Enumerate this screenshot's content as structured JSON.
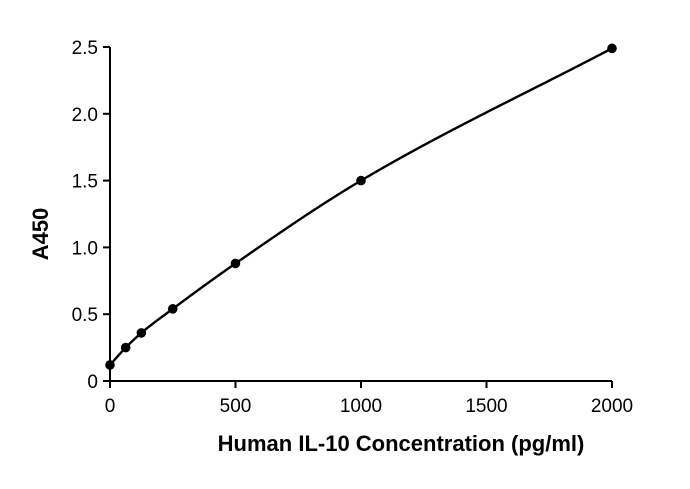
{
  "chart_data": {
    "type": "scatter",
    "title": "",
    "xlabel": "Human IL-10 Concentration (pg/ml)",
    "ylabel": "A450",
    "xlim": [
      0,
      2000
    ],
    "ylim": [
      0,
      2.5
    ],
    "x_ticks": [
      0,
      500,
      1000,
      1500,
      2000
    ],
    "x_tick_labels": [
      "0",
      "500",
      "1000",
      "1500",
      "2000"
    ],
    "y_ticks": [
      0,
      0.5,
      1.0,
      1.5,
      2.0,
      2.5
    ],
    "y_tick_labels": [
      "0",
      "0.5",
      "1.0",
      "1.5",
      "2.0",
      "2.5"
    ],
    "grid": false,
    "fit_curve": true,
    "series": [
      {
        "x": [
          0,
          62.5,
          125,
          250,
          500,
          1000,
          2000
        ],
        "y": [
          0.12,
          0.25,
          0.36,
          0.54,
          0.88,
          1.5,
          2.49
        ]
      }
    ],
    "colors": {
      "line": "#000000",
      "marker": "#000000"
    }
  }
}
